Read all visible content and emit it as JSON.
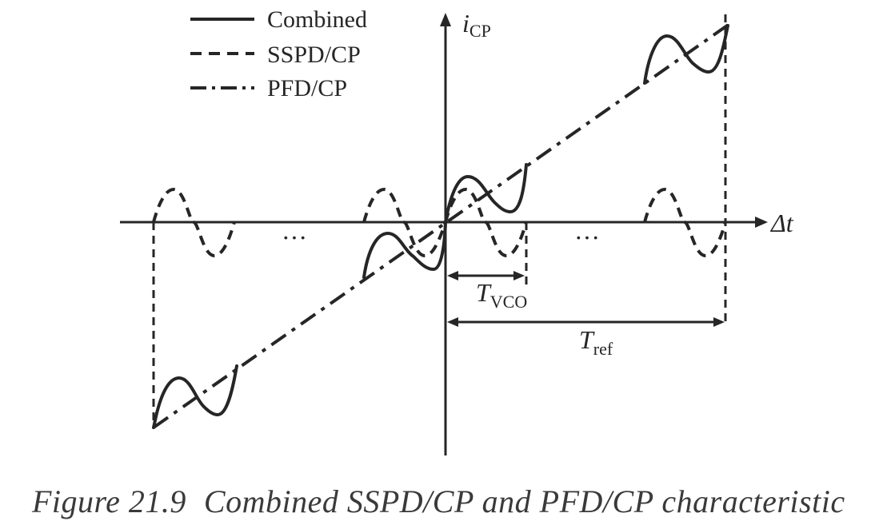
{
  "legend": {
    "items": [
      {
        "label": "Combined",
        "style": "solid"
      },
      {
        "label": "SSPD/CP",
        "style": "dashed"
      },
      {
        "label": "PFD/CP",
        "style": "dash-dot"
      }
    ]
  },
  "axes": {
    "y_symbol": "i",
    "y_subscript": "CP",
    "x_label": "Δt"
  },
  "annotations": {
    "tvco_symbol": "T",
    "tvco_subscript": "VCO",
    "tref_symbol": "T",
    "tref_subscript": "ref",
    "ellipsis_left": "···",
    "ellipsis_right": "···"
  },
  "caption": {
    "number": "Figure 21.9",
    "text": "Combined SSPD/CP and PFD/CP characteristic"
  },
  "colors": {
    "ink": "#262626",
    "caption": "#3a3a3a",
    "background": "#ffffff"
  }
}
